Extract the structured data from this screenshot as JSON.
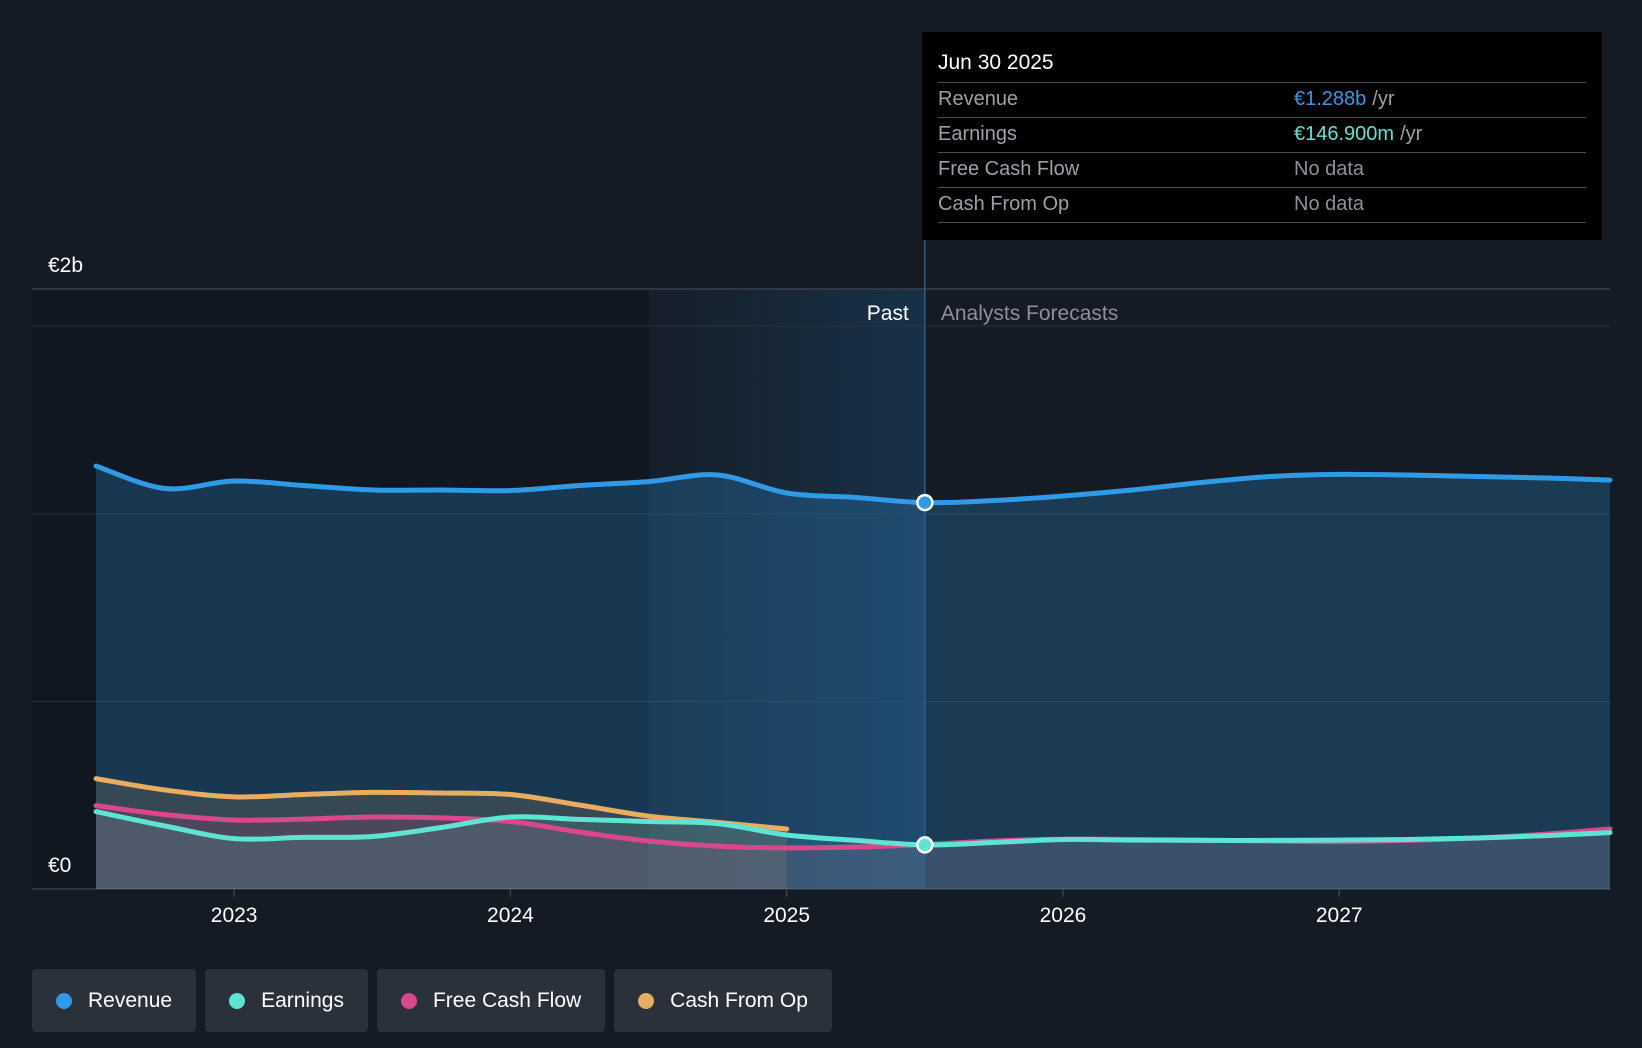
{
  "chart_data": {
    "type": "area",
    "title": "",
    "xlabel": "",
    "ylabel": "",
    "ylim": [
      0,
      2000000000
    ],
    "y_tick_labels": [
      "€0",
      "€2b"
    ],
    "x_tick_labels": [
      "2023",
      "2024",
      "2025",
      "2026",
      "2027"
    ],
    "x_ticks": [
      2023,
      2024,
      2025,
      2026,
      2027
    ],
    "xlim": [
      2022.25,
      2027.98
    ],
    "past_label": "Past",
    "forecast_label": "Analysts Forecasts",
    "past_boundary": 2025.5,
    "shaded_start": 2024.5,
    "series": [
      {
        "name": "Revenue",
        "color": "#2f9ae6",
        "x": [
          2022.5,
          2022.75,
          2023.0,
          2023.25,
          2023.5,
          2023.75,
          2024.0,
          2024.25,
          2024.5,
          2024.75,
          2025.0,
          2025.25,
          2025.5,
          2025.75,
          2026.0,
          2026.25,
          2026.5,
          2026.75,
          2027.0,
          2027.25,
          2027.5,
          2027.75,
          2027.98
        ],
        "values": [
          1410000000,
          1335000000,
          1360000000,
          1345000000,
          1330000000,
          1330000000,
          1328000000,
          1345000000,
          1358000000,
          1380000000,
          1320000000,
          1305000000,
          1288000000,
          1295000000,
          1310000000,
          1330000000,
          1355000000,
          1375000000,
          1382000000,
          1380000000,
          1375000000,
          1370000000,
          1363000000
        ]
      },
      {
        "name": "Earnings",
        "color": "#5fe3d2",
        "x": [
          2022.5,
          2022.75,
          2023.0,
          2023.25,
          2023.5,
          2023.75,
          2024.0,
          2024.25,
          2024.5,
          2024.75,
          2025.0,
          2025.25,
          2025.5,
          2025.75,
          2026.0,
          2026.25,
          2026.5,
          2026.75,
          2027.0,
          2027.25,
          2027.5,
          2027.75,
          2027.98
        ],
        "values": [
          258000000,
          210000000,
          168000000,
          172000000,
          175000000,
          205000000,
          240000000,
          232000000,
          225000000,
          218000000,
          180000000,
          162000000,
          147000000,
          155000000,
          165000000,
          163000000,
          162000000,
          162000000,
          163000000,
          165000000,
          170000000,
          178000000,
          188000000
        ]
      },
      {
        "name": "Free Cash Flow",
        "color": "#d9488c",
        "x": [
          2022.5,
          2022.75,
          2023.0,
          2023.25,
          2023.5,
          2023.75,
          2024.0,
          2024.25,
          2024.5,
          2024.75,
          2025.0,
          2025.25,
          2025.5,
          2025.75,
          2026.0,
          2026.25,
          2026.5,
          2026.75,
          2027.0,
          2027.25,
          2027.5,
          2027.75,
          2027.98
        ],
        "values": [
          278000000,
          248000000,
          230000000,
          233000000,
          240000000,
          237000000,
          225000000,
          190000000,
          160000000,
          143000000,
          137000000,
          140000000,
          148000000,
          160000000,
          166000000,
          165000000,
          163000000,
          160000000,
          158000000,
          162000000,
          170000000,
          183000000,
          200000000
        ]
      },
      {
        "name": "Cash From Op",
        "color": "#e8ad5e",
        "x": [
          2022.5,
          2022.75,
          2023.0,
          2023.25,
          2023.5,
          2023.75,
          2024.0,
          2024.25,
          2024.5,
          2024.75,
          2025.0
        ],
        "values": [
          368000000,
          330000000,
          307000000,
          315000000,
          322000000,
          320000000,
          315000000,
          280000000,
          243000000,
          222000000,
          200000000
        ]
      }
    ]
  },
  "tooltip": {
    "date": "Jun 30 2025",
    "rows": [
      {
        "label": "Revenue",
        "value": "€1.288b",
        "unit": "/yr",
        "color": "#2f9ae6"
      },
      {
        "label": "Earnings",
        "value": "€146.900m",
        "unit": "/yr",
        "color": "#5fe3d2"
      },
      {
        "label": "Free Cash Flow",
        "value": "No data",
        "unit": "",
        "color": "#8b9099"
      },
      {
        "label": "Cash From Op",
        "value": "No data",
        "unit": "",
        "color": "#8b9099"
      }
    ]
  },
  "legend": [
    {
      "label": "Revenue",
      "color": "#2f9ae6"
    },
    {
      "label": "Earnings",
      "color": "#5fe3d2"
    },
    {
      "label": "Free Cash Flow",
      "color": "#d9488c"
    },
    {
      "label": "Cash From Op",
      "color": "#e8ad5e"
    }
  ]
}
